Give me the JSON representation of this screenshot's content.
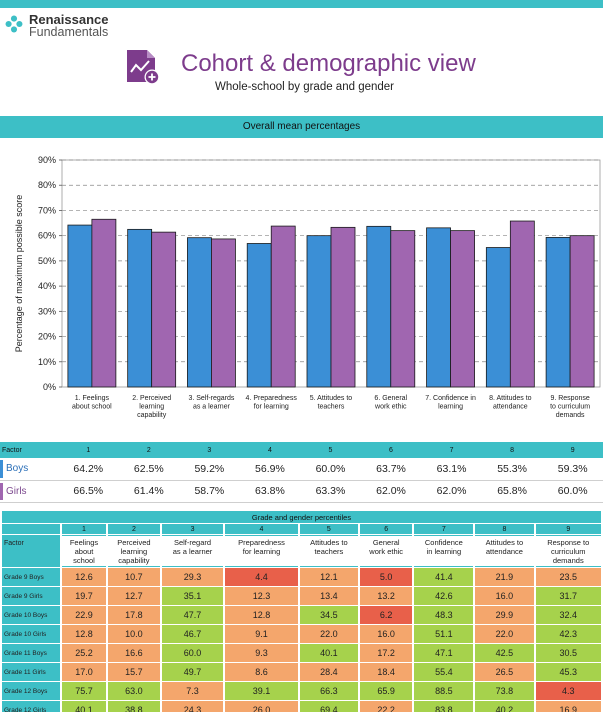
{
  "brand": {
    "name": "Renaissance",
    "sub": "Fundamentals"
  },
  "header": {
    "title": "Cohort & demographic view",
    "subtitle": "Whole-school by grade and gender"
  },
  "chart_section_title": "Overall mean percentages",
  "chart_data": {
    "type": "bar",
    "ylabel": "Percentage of maximum possible score",
    "ylim": [
      0,
      90
    ],
    "yticks": [
      "0%",
      "10%",
      "20%",
      "30%",
      "40%",
      "50%",
      "60%",
      "70%",
      "80%",
      "90%"
    ],
    "categories": [
      [
        "1. Feelings",
        "about school"
      ],
      [
        "2. Perceived",
        "learning",
        "capability"
      ],
      [
        "3. Self-regards",
        "as a learner"
      ],
      [
        "4. Preparedness",
        "for learning"
      ],
      [
        "5. Attitudes to",
        "teachers"
      ],
      [
        "6. General",
        "work ethic"
      ],
      [
        "7. Confidence in",
        "learning"
      ],
      [
        "8. Attitudes to",
        "attendance"
      ],
      [
        "9. Response",
        "to curriculum",
        "demands"
      ]
    ],
    "series": [
      {
        "name": "Boys",
        "color": "#3b8fd6",
        "values": [
          64.2,
          62.5,
          59.2,
          56.9,
          60.0,
          63.7,
          63.1,
          55.3,
          59.3
        ]
      },
      {
        "name": "Girls",
        "color": "#a066b0",
        "values": [
          66.5,
          61.4,
          58.7,
          63.8,
          63.3,
          62.0,
          62.0,
          65.8,
          60.0
        ]
      }
    ],
    "grid": true
  },
  "summary_table": {
    "factor_label": "Factor",
    "numbers": [
      "1",
      "2",
      "3",
      "4",
      "5",
      "6",
      "7",
      "8",
      "9"
    ],
    "rows": [
      {
        "label": "Boys",
        "values": [
          "64.2%",
          "62.5%",
          "59.2%",
          "56.9%",
          "60.0%",
          "63.7%",
          "63.1%",
          "55.3%",
          "59.3%"
        ]
      },
      {
        "label": "Girls",
        "values": [
          "66.5%",
          "61.4%",
          "58.7%",
          "63.8%",
          "63.3%",
          "62.0%",
          "62.0%",
          "65.8%",
          "60.0%"
        ]
      }
    ]
  },
  "percentile_table": {
    "title": "Grade and gender percentiles",
    "factor_label": "Factor",
    "numbers": [
      "1",
      "2",
      "3",
      "4",
      "5",
      "6",
      "7",
      "8",
      "9"
    ],
    "columns": [
      [
        "Feelings",
        "about",
        "school"
      ],
      [
        "Perceived",
        "learning",
        "capability"
      ],
      [
        "Self-regard",
        "as a learner"
      ],
      [
        "Preparedness",
        "for learning"
      ],
      [
        "Attitudes to",
        "teachers"
      ],
      [
        "General",
        "work ethic"
      ],
      [
        "Confidence",
        "in learning"
      ],
      [
        "Attitudes to",
        "attendance"
      ],
      [
        "Response to",
        "curriculum",
        "demands"
      ]
    ],
    "rows": [
      {
        "label": "Grade 9 Boys",
        "values": [
          "12.6",
          "10.7",
          "29.3",
          "4.4",
          "12.1",
          "5.0",
          "41.4",
          "21.9",
          "23.5"
        ]
      },
      {
        "label": "Grade 9 Girls",
        "values": [
          "19.7",
          "12.7",
          "35.1",
          "12.3",
          "13.4",
          "13.2",
          "42.6",
          "16.0",
          "31.7"
        ]
      },
      {
        "label": "Grade 10 Boys",
        "values": [
          "22.9",
          "17.8",
          "47.7",
          "12.8",
          "34.5",
          "6.2",
          "48.3",
          "29.9",
          "32.4"
        ]
      },
      {
        "label": "Grade 10 Girls",
        "values": [
          "12.8",
          "10.0",
          "46.7",
          "9.1",
          "22.0",
          "16.0",
          "51.1",
          "22.0",
          "42.3"
        ]
      },
      {
        "label": "Grade 11 Boys",
        "values": [
          "25.2",
          "16.6",
          "60.0",
          "9.3",
          "40.1",
          "17.2",
          "47.1",
          "42.5",
          "30.5"
        ]
      },
      {
        "label": "Grade 11 Girls",
        "values": [
          "17.0",
          "15.7",
          "49.7",
          "8.6",
          "28.4",
          "18.4",
          "55.4",
          "26.5",
          "45.3"
        ]
      },
      {
        "label": "Grade 12 Boys",
        "values": [
          "75.7",
          "63.0",
          "7.3",
          "39.1",
          "66.3",
          "65.9",
          "88.5",
          "73.8",
          "4.3"
        ]
      },
      {
        "label": "Grade 12 Girls",
        "values": [
          "40.1",
          "38.8",
          "24.3",
          "26.0",
          "69.4",
          "22.2",
          "83.8",
          "40.2",
          "16.9"
        ]
      }
    ],
    "colors": {
      "red": "#e8604a",
      "orange": "#f4a66c",
      "yellow": "#f2dc3a",
      "lightgreen": "#a6d24c",
      "green": "#7cc243"
    }
  }
}
